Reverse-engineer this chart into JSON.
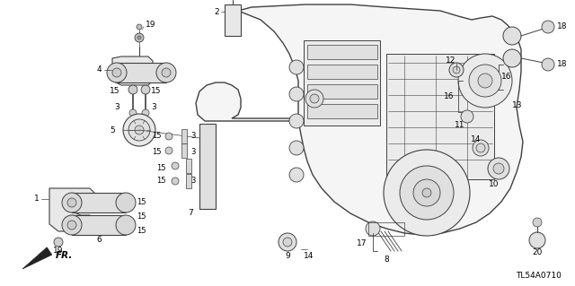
{
  "bg_color": "#ffffff",
  "diagram_code": "TL54A0710",
  "line_color": "#404040",
  "text_color": "#000000",
  "label_fontsize": 6.5,
  "figsize": [
    6.4,
    3.19
  ],
  "dpi": 100,
  "fr_label": "FR.",
  "part_numbers": [
    "1",
    "2",
    "3",
    "4",
    "5",
    "6",
    "7",
    "8",
    "9",
    "10",
    "11",
    "12",
    "13",
    "14",
    "15",
    "16",
    "17",
    "18",
    "19",
    "20"
  ]
}
